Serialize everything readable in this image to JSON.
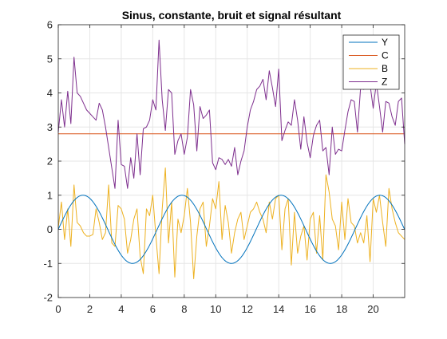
{
  "chart_data": {
    "type": "line",
    "title": "Sinus, constante, bruit et signal résultant",
    "xlabel": "",
    "ylabel": "",
    "xlim": [
      0,
      22
    ],
    "ylim": [
      -2,
      6
    ],
    "grid": true,
    "legend_position": "top-right",
    "x_ticks": [
      "0",
      "2",
      "4",
      "6",
      "8",
      "10",
      "12",
      "14",
      "16",
      "18",
      "20"
    ],
    "y_ticks": [
      "-2",
      "-1",
      "0",
      "1",
      "2",
      "3",
      "4",
      "5",
      "6"
    ],
    "series": [
      {
        "name": "Y",
        "color": "#0072BD",
        "function": "sin(x)",
        "x_range": [
          0,
          22
        ]
      },
      {
        "name": "C",
        "color": "#D95319",
        "x": [
          0,
          22
        ],
        "y": [
          2.8,
          2.8
        ]
      },
      {
        "name": "B",
        "color": "#EDB120",
        "x": [
          0,
          0.2,
          0.4,
          0.6,
          0.8,
          1.0,
          1.2,
          1.4,
          1.6,
          1.8,
          2.0,
          2.2,
          2.4,
          2.6,
          2.8,
          3.0,
          3.2,
          3.4,
          3.6,
          3.8,
          4.0,
          4.2,
          4.4,
          4.6,
          4.8,
          5.0,
          5.2,
          5.4,
          5.6,
          5.8,
          6.0,
          6.2,
          6.4,
          6.6,
          6.8,
          7.0,
          7.2,
          7.4,
          7.6,
          7.8,
          8.0,
          8.2,
          8.4,
          8.6,
          8.8,
          9.0,
          9.2,
          9.4,
          9.6,
          9.8,
          10.0,
          10.2,
          10.4,
          10.6,
          10.8,
          11.0,
          11.2,
          11.4,
          11.6,
          11.8,
          12.0,
          12.2,
          12.4,
          12.6,
          12.8,
          13.0,
          13.2,
          13.4,
          13.6,
          13.8,
          14.0,
          14.2,
          14.4,
          14.6,
          14.8,
          15.0,
          15.2,
          15.4,
          15.6,
          15.8,
          16.0,
          16.2,
          16.4,
          16.6,
          16.8,
          17.0,
          17.2,
          17.4,
          17.6,
          17.8,
          18.0,
          18.2,
          18.4,
          18.6,
          18.8,
          19.0,
          19.2,
          19.4,
          19.6,
          19.8,
          20.0,
          20.2,
          20.4,
          20.6,
          20.8,
          21.0,
          21.2,
          21.4,
          21.6,
          21.8,
          22.0
        ],
        "y": [
          0.05,
          0.8,
          -0.3,
          0.6,
          -0.5,
          1.3,
          0.2,
          0.1,
          -0.1,
          -0.2,
          -0.2,
          -0.15,
          0.6,
          0.2,
          -0.3,
          -0.1,
          1.3,
          -0.4,
          -0.5,
          0.7,
          0.6,
          0.3,
          -0.7,
          -0.3,
          0.3,
          0.6,
          -0.8,
          -1.3,
          0.6,
          0.4,
          1.0,
          -0.2,
          -1.3,
          0.6,
          1.8,
          -0.4,
          0.8,
          -1.4,
          0.3,
          -0.1,
          0.4,
          1.2,
          0.2,
          -1.45,
          -0.2,
          0.6,
          0.8,
          -0.5,
          0.1,
          0.9,
          0.6,
          1.4,
          -0.3,
          0.7,
          0.2,
          -0.7,
          -0.1,
          0.3,
          0.5,
          -0.3,
          0.1,
          0.5,
          0.6,
          0.8,
          0.5,
          0.3,
          -0.1,
          0.8,
          0.3,
          0.9,
          1.0,
          -0.6,
          0.6,
          0.9,
          -1.05,
          0.5,
          -0.7,
          -0.2,
          0.1,
          -0.9,
          0.3,
          0.5,
          -0.7,
          0.4,
          -0.9,
          1.6,
          1.1,
          0.3,
          0.1,
          -0.6,
          0.8,
          -0.3,
          0.9,
          0.2,
          0.1,
          -0.4,
          -0.1,
          -0.4,
          0.4,
          -0.95,
          0.9,
          0.5,
          1.0,
          0.2,
          -0.5,
          1.2,
          0.6,
          0.2,
          -0.1,
          -0.2,
          -0.3
        ]
      },
      {
        "name": "Z",
        "color": "#7E2F8E",
        "x": [
          0,
          0.2,
          0.4,
          0.6,
          0.8,
          1.0,
          1.2,
          1.4,
          1.6,
          1.8,
          2.0,
          2.2,
          2.4,
          2.6,
          2.8,
          3.0,
          3.2,
          3.4,
          3.6,
          3.8,
          4.0,
          4.2,
          4.4,
          4.6,
          4.8,
          5.0,
          5.2,
          5.4,
          5.6,
          5.8,
          6.0,
          6.2,
          6.4,
          6.6,
          6.8,
          7.0,
          7.2,
          7.4,
          7.6,
          7.8,
          8.0,
          8.2,
          8.4,
          8.6,
          8.8,
          9.0,
          9.2,
          9.4,
          9.6,
          9.8,
          10.0,
          10.2,
          10.4,
          10.6,
          10.8,
          11.0,
          11.2,
          11.4,
          11.6,
          11.8,
          12.0,
          12.2,
          12.4,
          12.6,
          12.8,
          13.0,
          13.2,
          13.4,
          13.6,
          13.8,
          14.0,
          14.2,
          14.4,
          14.6,
          14.8,
          15.0,
          15.2,
          15.4,
          15.6,
          15.8,
          16.0,
          16.2,
          16.4,
          16.6,
          16.8,
          17.0,
          17.2,
          17.4,
          17.6,
          17.8,
          18.0,
          18.2,
          18.4,
          18.6,
          18.8,
          19.0,
          19.2,
          19.4,
          19.6,
          19.8,
          20.0,
          20.2,
          20.4,
          20.6,
          20.8,
          21.0,
          21.2,
          21.4,
          21.6,
          21.8,
          22.0
        ],
        "y": [
          2.85,
          3.8,
          3.0,
          4.05,
          3.1,
          5.05,
          4.0,
          3.9,
          3.7,
          3.5,
          3.4,
          3.3,
          3.2,
          3.7,
          3.5,
          3.0,
          2.4,
          1.8,
          1.2,
          3.2,
          1.9,
          1.85,
          1.2,
          2.1,
          1.5,
          2.8,
          1.6,
          2.95,
          3.0,
          3.2,
          3.8,
          3.5,
          5.55,
          3.8,
          2.9,
          4.1,
          4.0,
          2.2,
          2.6,
          2.8,
          2.2,
          2.7,
          4.1,
          3.65,
          2.3,
          3.6,
          3.25,
          3.35,
          3.5,
          1.95,
          1.75,
          2.1,
          2.05,
          1.9,
          2.05,
          1.85,
          2.4,
          1.6,
          2.0,
          2.3,
          3.0,
          3.5,
          3.75,
          4.1,
          4.2,
          4.4,
          3.8,
          4.65,
          4.15,
          3.6,
          4.7,
          2.6,
          2.9,
          3.15,
          3.05,
          3.8,
          3.2,
          2.35,
          3.3,
          2.55,
          2.1,
          2.75,
          3.05,
          3.2,
          2.3,
          2.4,
          1.6,
          3.0,
          2.2,
          2.35,
          2.3,
          2.9,
          3.45,
          3.8,
          3.75,
          2.85,
          4.15,
          4.1,
          4.25,
          4.25,
          3.55,
          4.3,
          3.6,
          2.85,
          3.75,
          3.7,
          3.3,
          3.05,
          3.75,
          3.85,
          2.5
        ]
      }
    ]
  }
}
